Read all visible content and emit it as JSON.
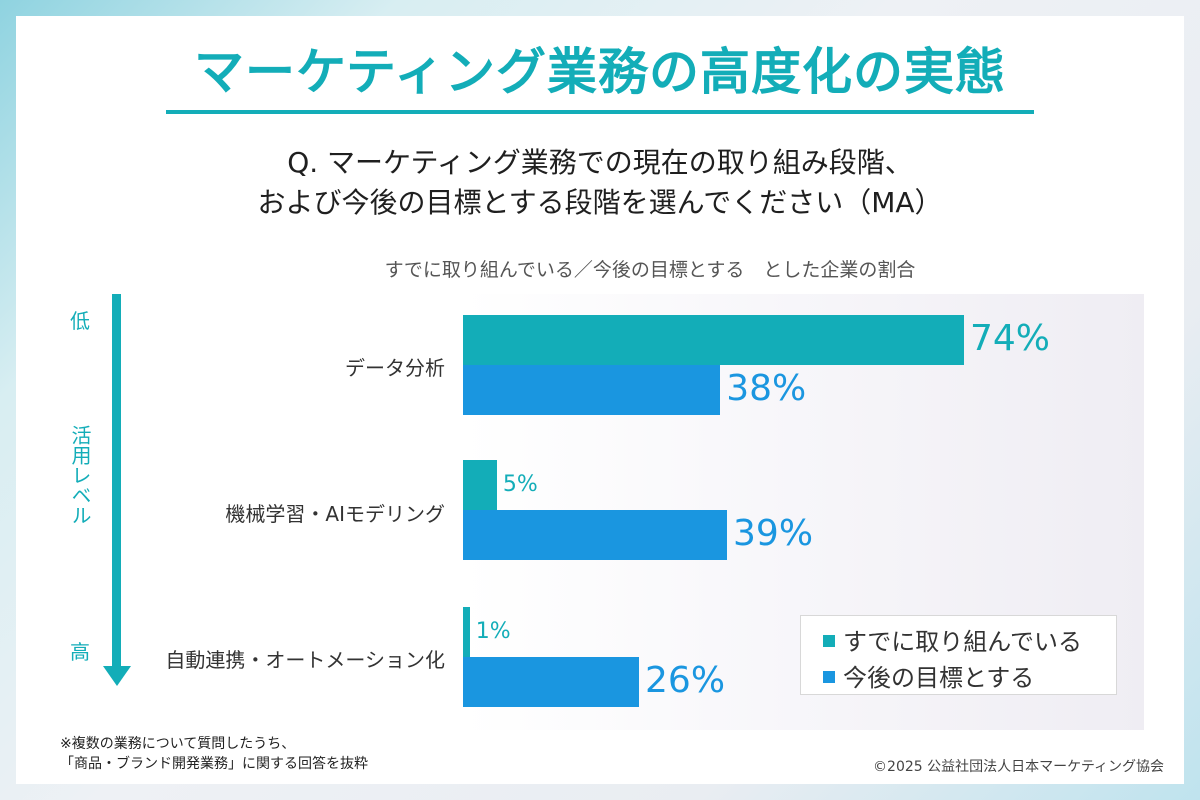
{
  "header": {
    "title": "マーケティング業務の高度化の実態",
    "question_line1": "Q. マーケティング業務での現在の取り組み段階、",
    "question_line2": "および今後の目標とする段階を選んでください（MA）"
  },
  "level_axis": {
    "low": "低",
    "label": "活用レベル",
    "high": "高"
  },
  "chart_data": {
    "type": "bar",
    "orientation": "horizontal",
    "title": "すでに取り組んでいる／今後の目標とする　とした企業の割合",
    "categories": [
      "データ分析",
      "機械学習・AIモデリング",
      "自動連携・オートメーション化"
    ],
    "series": [
      {
        "name": "すでに取り組んでいる",
        "values": [
          74,
          5,
          1
        ],
        "labels": [
          "74%",
          "5%",
          "1%"
        ],
        "color": "#13adb8"
      },
      {
        "name": "今後の目標とする",
        "values": [
          38,
          39,
          26
        ],
        "labels": [
          "38%",
          "39%",
          "26%"
        ],
        "color": "#1a96e0"
      }
    ],
    "xlim": [
      0,
      100
    ],
    "unit": "%",
    "grid": false,
    "legend_position": "bottom-right"
  },
  "footer": {
    "note_line1": "※複数の業務について質問したうち、",
    "note_line2": "「商品・ブランド開発業務」に関する回答を抜粋",
    "copyright": "©2025 公益社団法人日本マーケティング協会"
  }
}
